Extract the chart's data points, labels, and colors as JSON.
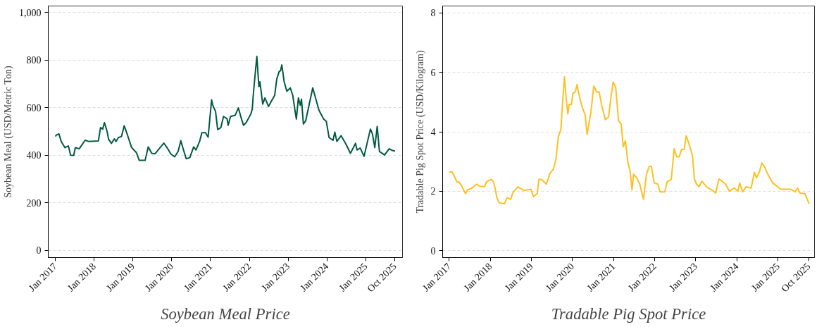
{
  "chart_data": [
    {
      "type": "line",
      "title": "Soybean Meal Price",
      "ylabel": "Soybean Meal (USD/Metric Ton)",
      "grid": "y",
      "line_style": "solid",
      "xlim": [
        "2016-10-26",
        "2025-12-13"
      ],
      "ylim": [
        -31,
        1028
      ],
      "xticks": [
        {
          "value": "2017-01-01",
          "label": "Jan 2017"
        },
        {
          "value": "2018-01-01",
          "label": "Jan 2018"
        },
        {
          "value": "2019-01-01",
          "label": "Jan 2019"
        },
        {
          "value": "2020-01-01",
          "label": "Jan 2020"
        },
        {
          "value": "2021-01-01",
          "label": "Jan 2021"
        },
        {
          "value": "2022-01-01",
          "label": "Jan 2022"
        },
        {
          "value": "2023-01-01",
          "label": "Jan 2023"
        },
        {
          "value": "2024-01-01",
          "label": "Jan 2024"
        },
        {
          "value": "2025-01-01",
          "label": "Jan 2025"
        },
        {
          "value": "2025-10-01",
          "label": "Oct 2025"
        }
      ],
      "yticks": [
        0,
        200,
        400,
        600,
        800,
        {
          "value": 1000,
          "label": "1,000"
        }
      ],
      "series": [
        {
          "color": "#005c3c",
          "x": [
            "2017-01-01",
            "2017-01-11",
            "2017-02-03",
            "2017-02-25",
            "2017-04-01",
            "2017-05-03",
            "2017-05-25",
            "2017-06-23",
            "2017-07-08",
            "2017-08-14",
            "2017-10-08",
            "2017-11-10",
            "2018-02-10",
            "2018-03-02",
            "2018-03-23",
            "2018-04-08",
            "2018-05-03",
            "2018-05-17",
            "2018-06-13",
            "2018-07-11",
            "2018-07-26",
            "2018-08-17",
            "2018-09-16",
            "2018-10-11",
            "2018-11-07",
            "2018-12-20",
            "2019-02-03",
            "2019-03-02",
            "2019-04-26",
            "2019-05-25",
            "2019-06-27",
            "2019-07-29",
            "2019-09-05",
            "2019-10-19",
            "2019-11-21",
            "2019-12-23",
            "2020-01-29",
            "2020-03-02",
            "2020-03-27",
            "2020-04-15",
            "2020-05-17",
            "2020-06-20",
            "2020-07-26",
            "2020-08-17",
            "2020-09-20",
            "2020-10-11",
            "2020-11-14",
            "2020-12-09",
            "2021-01-11",
            "2021-01-22",
            "2021-02-17",
            "2021-03-09",
            "2021-04-08",
            "2021-05-03",
            "2021-06-05",
            "2021-06-16",
            "2021-07-08",
            "2021-08-21",
            "2021-09-20",
            "2021-10-11",
            "2021-11-07",
            "2021-12-02",
            "2022-01-15",
            "2022-01-29",
            "2022-02-07",
            "2022-02-25",
            "2022-03-13",
            "2022-04-01",
            "2022-04-11",
            "2022-05-07",
            "2022-05-28",
            "2022-07-01",
            "2022-07-26",
            "2022-08-28",
            "2022-09-16",
            "2022-10-08",
            "2022-10-22",
            "2022-11-03",
            "2022-11-25",
            "2022-12-20",
            "2023-01-22",
            "2023-02-14",
            "2023-03-05",
            "2023-03-20",
            "2023-04-08",
            "2023-04-26",
            "2023-05-07",
            "2023-05-25",
            "2023-06-16",
            "2023-08-21",
            "2023-10-19",
            "2023-12-02",
            "2023-12-27",
            "2024-01-22",
            "2024-02-28",
            "2024-03-16",
            "2024-04-04",
            "2024-05-14",
            "2024-06-27",
            "2024-08-10",
            "2024-09-27",
            "2024-10-11",
            "2024-11-10",
            "2024-12-16",
            "2025-02-14",
            "2025-03-05",
            "2025-03-27",
            "2025-04-19",
            "2025-05-10",
            "2025-06-27",
            "2025-08-10",
            "2025-09-13",
            "2025-10-04"
          ],
          "values": [
            479,
            485,
            490,
            458,
            432,
            439,
            400,
            399,
            432,
            427,
            463,
            458,
            460,
            516,
            510,
            537,
            500,
            467,
            450,
            469,
            458,
            474,
            479,
            524,
            490,
            432,
            411,
            378,
            378,
            435,
            408,
            406,
            427,
            451,
            430,
            406,
            393,
            416,
            461,
            432,
            385,
            390,
            435,
            422,
            458,
            495,
            495,
            476,
            633,
            610,
            584,
            508,
            516,
            563,
            554,
            526,
            563,
            568,
            599,
            565,
            526,
            537,
            573,
            594,
            652,
            741,
            816,
            688,
            709,
            615,
            641,
            605,
            626,
            652,
            720,
            751,
            756,
            780,
            709,
            669,
            683,
            652,
            594,
            552,
            641,
            610,
            636,
            531,
            545,
            683,
            589,
            552,
            542,
            474,
            463,
            497,
            458,
            482,
            448,
            408,
            450,
            422,
            430,
            395,
            510,
            490,
            432,
            521,
            416,
            401,
            427,
            419,
            418
          ]
        }
      ]
    },
    {
      "type": "line",
      "title": "Tradable Pig Spot Price",
      "ylabel": "Tradable Pig Spot Price (USD/Kilogram)",
      "grid": "y",
      "line_style": "solid",
      "xlim": [
        "2016-11-03",
        "2025-11-21"
      ],
      "ylim": [
        -0.23,
        8.23
      ],
      "xticks": [
        {
          "value": "2017-01-01",
          "label": "Jan 2017"
        },
        {
          "value": "2018-01-01",
          "label": "Jan 2018"
        },
        {
          "value": "2019-01-01",
          "label": "Jan 2019"
        },
        {
          "value": "2020-01-01",
          "label": "Jan 2020"
        },
        {
          "value": "2021-01-01",
          "label": "Jan 2021"
        },
        {
          "value": "2022-01-01",
          "label": "Jan 2022"
        },
        {
          "value": "2023-01-01",
          "label": "Jan 2023"
        },
        {
          "value": "2024-01-01",
          "label": "Jan 2024"
        },
        {
          "value": "2025-01-01",
          "label": "Jan 2025"
        },
        {
          "value": "2025-10-01",
          "label": "Oct 2025"
        }
      ],
      "yticks": [
        0,
        2,
        4,
        6,
        8
      ],
      "series": [
        {
          "color": "#ffc020",
          "x": [
            "2017-01-01",
            "2017-01-26",
            "2017-02-17",
            "2017-03-09",
            "2017-03-27",
            "2017-04-19",
            "2017-05-25",
            "2017-06-13",
            "2017-07-15",
            "2017-09-02",
            "2017-09-27",
            "2017-11-10",
            "2017-11-28",
            "2018-01-08",
            "2018-01-29",
            "2018-02-14",
            "2018-02-28",
            "2018-03-20",
            "2018-05-07",
            "2018-05-28",
            "2018-07-01",
            "2018-07-19",
            "2018-09-02",
            "2018-10-26",
            "2018-12-27",
            "2019-01-19",
            "2019-02-21",
            "2019-03-09",
            "2019-04-01",
            "2019-05-14",
            "2019-06-16",
            "2019-07-15",
            "2019-08-07",
            "2019-08-28",
            "2019-09-20",
            "2019-10-04",
            "2019-10-22",
            "2019-11-07",
            "2019-11-21",
            "2019-12-02",
            "2019-12-23",
            "2020-01-04",
            "2020-01-26",
            "2020-02-10",
            "2020-02-25",
            "2020-03-27",
            "2020-04-22",
            "2020-05-10",
            "2020-06-13",
            "2020-07-08",
            "2020-08-03",
            "2020-08-25",
            "2020-09-20",
            "2020-10-19",
            "2020-11-17",
            "2020-12-05",
            "2020-12-27",
            "2021-01-19",
            "2021-02-14",
            "2021-03-09",
            "2021-03-27",
            "2021-04-15",
            "2021-05-07",
            "2021-05-28",
            "2021-06-13",
            "2021-06-27",
            "2021-07-26",
            "2021-08-21",
            "2021-09-23",
            "2021-10-19",
            "2021-11-14",
            "2021-12-02",
            "2021-12-27",
            "2022-01-29",
            "2022-02-17",
            "2022-04-01",
            "2022-04-22",
            "2022-05-28",
            "2022-06-23",
            "2022-07-15",
            "2022-08-07",
            "2022-08-28",
            "2022-09-20",
            "2022-10-08",
            "2022-11-10",
            "2022-12-02",
            "2022-12-20",
            "2023-01-08",
            "2023-01-29",
            "2023-02-25",
            "2023-04-08",
            "2023-05-21",
            "2023-06-27",
            "2023-07-26",
            "2023-09-23",
            "2023-10-26",
            "2023-12-09",
            "2024-01-11",
            "2024-01-26",
            "2024-02-21",
            "2024-03-23",
            "2024-05-07",
            "2024-06-05",
            "2024-06-23",
            "2024-07-19",
            "2024-08-10",
            "2024-09-05",
            "2024-09-27",
            "2024-11-14",
            "2024-12-16",
            "2025-01-26",
            "2025-04-22",
            "2025-06-02",
            "2025-06-23",
            "2025-07-15",
            "2025-08-28",
            "2025-10-04"
          ],
          "values": [
            2.65,
            2.65,
            2.49,
            2.32,
            2.32,
            2.19,
            1.92,
            2.05,
            2.09,
            2.24,
            2.17,
            2.15,
            2.32,
            2.4,
            2.32,
            2.07,
            1.78,
            1.61,
            1.58,
            1.78,
            1.73,
            1.94,
            2.15,
            2.03,
            2.07,
            1.82,
            1.92,
            2.4,
            2.4,
            2.24,
            2.61,
            2.74,
            3.07,
            3.83,
            4.08,
            4.92,
            5.85,
            5.08,
            4.6,
            4.92,
            4.92,
            5.29,
            5.34,
            5.59,
            5.29,
            4.83,
            4.58,
            3.91,
            4.67,
            5.54,
            5.34,
            5.34,
            4.83,
            4.41,
            4.5,
            5.08,
            5.67,
            5.5,
            4.37,
            4.25,
            3.49,
            3.7,
            2.99,
            2.65,
            2.05,
            2.57,
            2.45,
            2.24,
            1.73,
            2.57,
            2.84,
            2.84,
            2.28,
            2.24,
            1.98,
            1.98,
            2.32,
            2.4,
            3.43,
            3.16,
            3.16,
            3.41,
            3.41,
            3.87,
            3.49,
            3.2,
            2.4,
            2.24,
            2.15,
            2.34,
            2.14,
            2.05,
            1.94,
            2.42,
            2.24,
            2.0,
            2.11,
            2.0,
            2.28,
            1.98,
            2.15,
            2.11,
            2.64,
            2.45,
            2.65,
            2.95,
            2.81,
            2.61,
            2.28,
            2.19,
            2.07,
            2.07,
            1.98,
            2.11,
            1.94,
            1.92,
            1.58
          ]
        }
      ]
    }
  ]
}
